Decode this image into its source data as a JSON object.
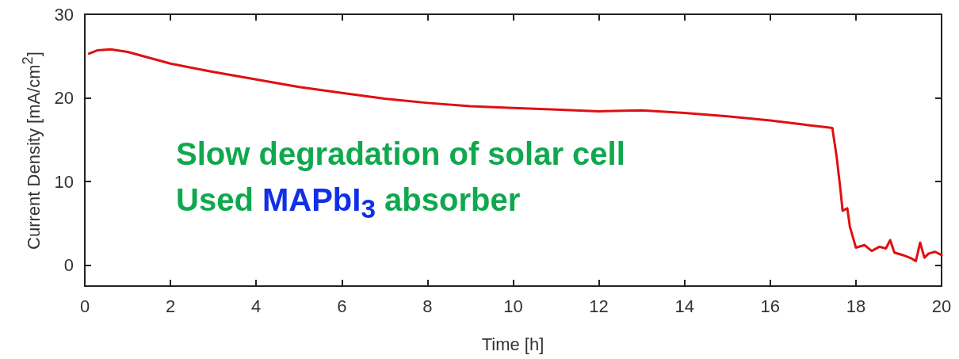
{
  "chart_data": {
    "type": "line",
    "xlabel": "Time [h]",
    "ylabel": "Current Density [mA/cm$^{2}$]",
    "xlim": [
      0,
      20
    ],
    "xticks": [
      0,
      2,
      4,
      6,
      8,
      10,
      12,
      14,
      16,
      18,
      20
    ],
    "ylim": [
      -2.5,
      30
    ],
    "yticks": [
      0,
      10,
      20,
      30
    ],
    "grid": false,
    "marker": "none",
    "line_style": "solid",
    "annotations": [
      "Slow degradation of solar cell",
      "Used MAPbI$_{3}$ absorber"
    ],
    "series": [
      {
        "color": "#e01010",
        "x": [
          0.1,
          0.3,
          0.6,
          1,
          2,
          3,
          4,
          5,
          6,
          7,
          8,
          9,
          10,
          11,
          12,
          13,
          14,
          15,
          16,
          16.8,
          17.3,
          17.45,
          17.55,
          17.64,
          17.69,
          17.8,
          17.86,
          18.0,
          18.2,
          18.37,
          18.55,
          18.7,
          18.8,
          18.9,
          19.1,
          19.3,
          19.4,
          19.5,
          19.6,
          19.7,
          19.85,
          20
        ],
        "values": [
          25.3,
          25.7,
          25.8,
          25.5,
          24.1,
          23.1,
          22.2,
          21.3,
          20.6,
          19.9,
          19.4,
          19.0,
          18.8,
          18.6,
          18.4,
          18.5,
          18.2,
          17.8,
          17.3,
          16.8,
          16.5,
          16.4,
          13.0,
          9.0,
          6.5,
          6.8,
          4.6,
          2.1,
          2.4,
          1.7,
          2.2,
          2.0,
          3.0,
          1.5,
          1.2,
          0.8,
          0.5,
          2.7,
          0.9,
          1.4,
          1.6,
          1.2
        ]
      }
    ]
  }
}
